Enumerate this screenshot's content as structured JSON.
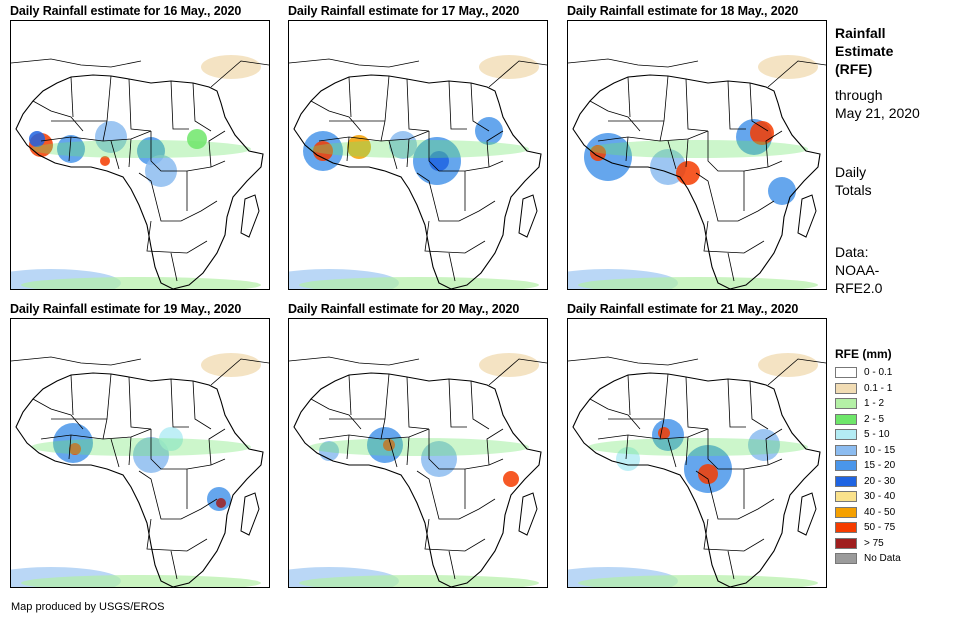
{
  "panels": [
    {
      "title": "Daily Rainfall estimate for 16 May., 2020"
    },
    {
      "title": "Daily Rainfall estimate for 17 May., 2020"
    },
    {
      "title": "Daily Rainfall estimate for 18 May., 2020"
    },
    {
      "title": "Daily Rainfall estimate for 19 May., 2020"
    },
    {
      "title": "Daily Rainfall estimate for 20 May., 2020"
    },
    {
      "title": "Daily Rainfall estimate for 21 May., 2020"
    }
  ],
  "sidebar": {
    "heading": [
      "Rainfall",
      "Estimate",
      "(RFE)"
    ],
    "through": [
      "through",
      "May 21, 2020"
    ],
    "totals": [
      "Daily",
      "Totals"
    ],
    "data": [
      "Data:",
      "NOAA-",
      "RFE2.0"
    ]
  },
  "legend": {
    "title": "RFE (mm)",
    "items": [
      {
        "label": "0 - 0.1",
        "color": "#ffffff"
      },
      {
        "label": "0.1 - 1",
        "color": "#f1dcb4"
      },
      {
        "label": "1 - 2",
        "color": "#b4f0a6"
      },
      {
        "label": "2 - 5",
        "color": "#6ee66a"
      },
      {
        "label": "5 - 10",
        "color": "#b4ecf4"
      },
      {
        "label": "10 - 15",
        "color": "#8cbcf0"
      },
      {
        "label": "15 - 20",
        "color": "#4a96ea"
      },
      {
        "label": "20 - 30",
        "color": "#1f64e2"
      },
      {
        "label": "30 - 40",
        "color": "#fae28c"
      },
      {
        "label": "40 - 50",
        "color": "#f5a000"
      },
      {
        "label": "50 - 75",
        "color": "#f53c00"
      },
      {
        "label": "> 75",
        "color": "#a01e1e"
      },
      {
        "label": "No Data",
        "color": "#9b9b9b"
      }
    ]
  },
  "credit": "Map produced by USGS/EROS"
}
